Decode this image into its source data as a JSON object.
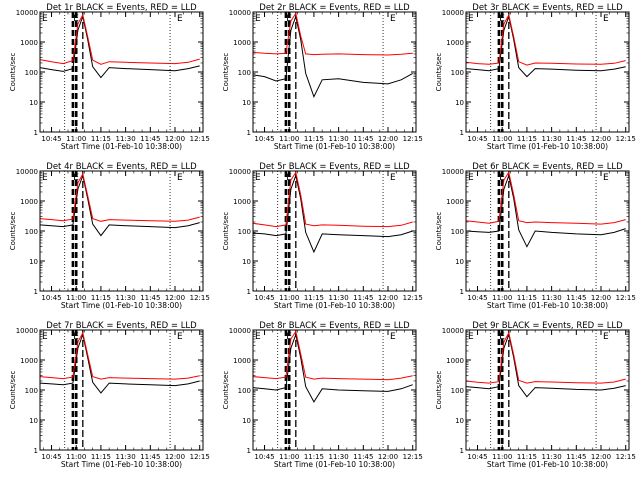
{
  "figure": {
    "x_tick_labels": [
      "10:45",
      "11:00",
      "11:15",
      "11:30",
      "11:45",
      "12:00",
      "12:15"
    ],
    "xlabel": "Start Time (01-Feb-10 10:38:00)",
    "ylabel": "Counts/sec",
    "y_tick_labels": [
      "1",
      "10",
      "100",
      "1000",
      "10000"
    ],
    "colors": {
      "events": "#000000",
      "lld": "#ff0000",
      "axes": "#000000"
    }
  },
  "chart_data": [
    {
      "type": "line",
      "title": "Det 1r BLACK = Events, RED = LLD",
      "x": [
        "10:38",
        "10:45",
        "10:52",
        "10:58",
        "11:01",
        "11:04",
        "11:07",
        "11:10",
        "11:15",
        "11:20",
        "11:30",
        "11:45",
        "12:00",
        "12:08",
        "12:15"
      ],
      "xlim": [
        "10:38",
        "12:17"
      ],
      "ylim": [
        1,
        10000
      ],
      "ylog": true,
      "series": [
        {
          "name": "Events",
          "values": [
            140,
            120,
            105,
            130,
            2500,
            7000,
            1200,
            150,
            65,
            140,
            130,
            120,
            110,
            130,
            160
          ]
        },
        {
          "name": "LLD",
          "values": [
            260,
            220,
            190,
            240,
            4000,
            8000,
            1500,
            250,
            180,
            220,
            210,
            200,
            190,
            210,
            270
          ]
        }
      ],
      "markers": {
        "dotted": [
          "10:53",
          "11:57"
        ],
        "dashed_heavy": [
          "10:58",
          "11:00"
        ],
        "dashed": [
          "11:04"
        ],
        "letters": [
          "E",
          "E",
          "E"
        ]
      }
    },
    {
      "type": "line",
      "title": "Det 2r BLACK = Events, RED = LLD",
      "x": [
        "10:38",
        "10:45",
        "10:52",
        "10:58",
        "11:01",
        "11:04",
        "11:07",
        "11:10",
        "11:15",
        "11:20",
        "11:30",
        "11:45",
        "12:00",
        "12:08",
        "12:15"
      ],
      "xlim": [
        "10:38",
        "12:17"
      ],
      "ylim": [
        1,
        10000
      ],
      "ylog": true,
      "series": [
        {
          "name": "Events",
          "values": [
            80,
            70,
            50,
            60,
            2500,
            7000,
            1200,
            90,
            15,
            55,
            60,
            45,
            40,
            55,
            90
          ]
        },
        {
          "name": "LLD",
          "values": [
            450,
            420,
            400,
            420,
            5000,
            9000,
            1600,
            400,
            380,
            390,
            400,
            380,
            370,
            390,
            420
          ]
        }
      ],
      "markers": {
        "dotted": [
          "10:53",
          "11:57"
        ],
        "dashed_heavy": [
          "10:58",
          "11:00"
        ],
        "dashed": [
          "11:04"
        ],
        "letters": [
          "E",
          "E",
          "E"
        ]
      }
    },
    {
      "type": "line",
      "title": "Det 3r BLACK = Events, RED = LLD",
      "x": [
        "10:38",
        "10:45",
        "10:52",
        "10:58",
        "11:01",
        "11:04",
        "11:07",
        "11:10",
        "11:15",
        "11:20",
        "11:30",
        "11:45",
        "12:00",
        "12:08",
        "12:15"
      ],
      "xlim": [
        "10:38",
        "12:17"
      ],
      "ylim": [
        1,
        10000
      ],
      "ylog": true,
      "series": [
        {
          "name": "Events",
          "values": [
            130,
            120,
            110,
            130,
            2500,
            7000,
            1200,
            140,
            70,
            130,
            125,
            115,
            110,
            125,
            150
          ]
        },
        {
          "name": "LLD",
          "values": [
            210,
            190,
            180,
            200,
            4000,
            8000,
            1500,
            220,
            170,
            200,
            195,
            185,
            180,
            195,
            240
          ]
        }
      ],
      "markers": {
        "dotted": [
          "10:53",
          "11:57"
        ],
        "dashed_heavy": [
          "10:58",
          "11:00"
        ],
        "dashed": [
          "11:04"
        ],
        "letters": [
          "E",
          "E",
          "E"
        ]
      }
    },
    {
      "type": "line",
      "title": "Det 4r BLACK = Events, RED = LLD",
      "x": [
        "10:38",
        "10:45",
        "10:52",
        "10:58",
        "11:01",
        "11:04",
        "11:07",
        "11:10",
        "11:15",
        "11:20",
        "11:30",
        "11:45",
        "12:00",
        "12:08",
        "12:15"
      ],
      "xlim": [
        "10:38",
        "12:17"
      ],
      "ylim": [
        1,
        10000
      ],
      "ylog": true,
      "series": [
        {
          "name": "Events",
          "values": [
            160,
            150,
            140,
            160,
            2500,
            7000,
            1200,
            170,
            70,
            160,
            150,
            140,
            130,
            150,
            190
          ]
        },
        {
          "name": "LLD",
          "values": [
            260,
            240,
            220,
            250,
            4000,
            8000,
            1500,
            260,
            210,
            240,
            230,
            220,
            210,
            230,
            290
          ]
        }
      ],
      "markers": {
        "dotted": [
          "10:53",
          "11:57"
        ],
        "dashed_heavy": [
          "10:58",
          "11:00"
        ],
        "dashed": [
          "11:04"
        ],
        "letters": [
          "E",
          "E",
          "E"
        ]
      }
    },
    {
      "type": "line",
      "title": "Det 5r BLACK = Events, RED = LLD",
      "x": [
        "10:38",
        "10:45",
        "10:52",
        "10:58",
        "11:01",
        "11:04",
        "11:07",
        "11:10",
        "11:15",
        "11:20",
        "11:30",
        "11:45",
        "12:00",
        "12:08",
        "12:15"
      ],
      "xlim": [
        "10:38",
        "12:17"
      ],
      "ylim": [
        1,
        10000
      ],
      "ylog": true,
      "series": [
        {
          "name": "Events",
          "values": [
            85,
            80,
            70,
            80,
            2500,
            7000,
            1200,
            90,
            20,
            80,
            75,
            70,
            65,
            75,
            100
          ]
        },
        {
          "name": "LLD",
          "values": [
            180,
            160,
            140,
            160,
            5000,
            9000,
            1600,
            170,
            150,
            160,
            155,
            145,
            140,
            155,
            200
          ]
        }
      ],
      "markers": {
        "dotted": [
          "10:53",
          "11:57"
        ],
        "dashed_heavy": [
          "10:58",
          "11:00"
        ],
        "dashed": [
          "11:04"
        ],
        "letters": [
          "E",
          "E",
          "E"
        ]
      }
    },
    {
      "type": "line",
      "title": "Det 6r BLACK = Events, RED = LLD",
      "x": [
        "10:38",
        "10:45",
        "10:52",
        "10:58",
        "11:01",
        "11:04",
        "11:07",
        "11:10",
        "11:15",
        "11:20",
        "11:30",
        "11:45",
        "12:00",
        "12:08",
        "12:15"
      ],
      "xlim": [
        "10:38",
        "12:17"
      ],
      "ylim": [
        1,
        10000
      ],
      "ylog": true,
      "series": [
        {
          "name": "Events",
          "values": [
            100,
            95,
            90,
            100,
            2500,
            7000,
            1200,
            110,
            30,
            100,
            90,
            80,
            75,
            90,
            120
          ]
        },
        {
          "name": "LLD",
          "values": [
            220,
            200,
            180,
            210,
            5000,
            9000,
            1600,
            220,
            190,
            200,
            190,
            180,
            170,
            190,
            240
          ]
        }
      ],
      "markers": {
        "dotted": [
          "10:53",
          "11:57"
        ],
        "dashed_heavy": [
          "10:58",
          "11:00"
        ],
        "dashed": [
          "11:04"
        ],
        "letters": [
          "E",
          "E",
          "E"
        ]
      }
    },
    {
      "type": "line",
      "title": "Det 7r BLACK = Events, RED = LLD",
      "x": [
        "10:38",
        "10:45",
        "10:52",
        "10:58",
        "11:01",
        "11:04",
        "11:07",
        "11:10",
        "11:15",
        "11:20",
        "11:30",
        "11:45",
        "12:00",
        "12:08",
        "12:15"
      ],
      "xlim": [
        "10:38",
        "12:17"
      ],
      "ylim": [
        1,
        10000
      ],
      "ylog": true,
      "series": [
        {
          "name": "Events",
          "values": [
            170,
            160,
            150,
            170,
            2500,
            7000,
            1200,
            180,
            80,
            170,
            160,
            150,
            140,
            160,
            200
          ]
        },
        {
          "name": "LLD",
          "values": [
            280,
            260,
            240,
            270,
            4000,
            8000,
            1500,
            280,
            230,
            260,
            250,
            240,
            230,
            250,
            300
          ]
        }
      ],
      "markers": {
        "dotted": [
          "10:53",
          "11:57"
        ],
        "dashed_heavy": [
          "10:58",
          "11:00"
        ],
        "dashed": [
          "11:04"
        ],
        "letters": [
          "E",
          "E",
          "E"
        ]
      }
    },
    {
      "type": "line",
      "title": "Det 8r BLACK = Events, RED = LLD",
      "x": [
        "10:38",
        "10:45",
        "10:52",
        "10:58",
        "11:01",
        "11:04",
        "11:07",
        "11:10",
        "11:15",
        "11:20",
        "11:30",
        "11:45",
        "12:00",
        "12:08",
        "12:15"
      ],
      "xlim": [
        "10:38",
        "12:17"
      ],
      "ylim": [
        1,
        10000
      ],
      "ylog": true,
      "series": [
        {
          "name": "Events",
          "values": [
            120,
            110,
            100,
            120,
            2500,
            7000,
            1200,
            130,
            40,
            110,
            100,
            95,
            90,
            110,
            150
          ]
        },
        {
          "name": "LLD",
          "values": [
            280,
            260,
            240,
            270,
            5000,
            9000,
            1600,
            270,
            230,
            250,
            240,
            230,
            220,
            250,
            300
          ]
        }
      ],
      "markers": {
        "dotted": [
          "10:53",
          "11:57"
        ],
        "dashed_heavy": [
          "10:58",
          "11:00"
        ],
        "dashed": [
          "11:04"
        ],
        "letters": [
          "E",
          "E",
          "E"
        ]
      }
    },
    {
      "type": "line",
      "title": "Det 9r BLACK = Events, RED = LLD",
      "x": [
        "10:38",
        "10:45",
        "10:52",
        "10:58",
        "11:01",
        "11:04",
        "11:07",
        "11:10",
        "11:15",
        "11:20",
        "11:30",
        "11:45",
        "12:00",
        "12:08",
        "12:15"
      ],
      "xlim": [
        "10:38",
        "12:17"
      ],
      "ylim": [
        1,
        10000
      ],
      "ylog": true,
      "series": [
        {
          "name": "Events",
          "values": [
            130,
            120,
            110,
            130,
            2500,
            7000,
            1200,
            140,
            60,
            120,
            115,
            105,
            100,
            115,
            140
          ]
        },
        {
          "name": "LLD",
          "values": [
            200,
            180,
            170,
            190,
            4000,
            8000,
            1500,
            210,
            170,
            190,
            185,
            175,
            170,
            185,
            230
          ]
        }
      ],
      "markers": {
        "dotted": [
          "10:53",
          "11:57"
        ],
        "dashed_heavy": [
          "10:58",
          "11:00"
        ],
        "dashed": [
          "11:04"
        ],
        "letters": [
          "E",
          "E",
          "E"
        ]
      }
    }
  ]
}
